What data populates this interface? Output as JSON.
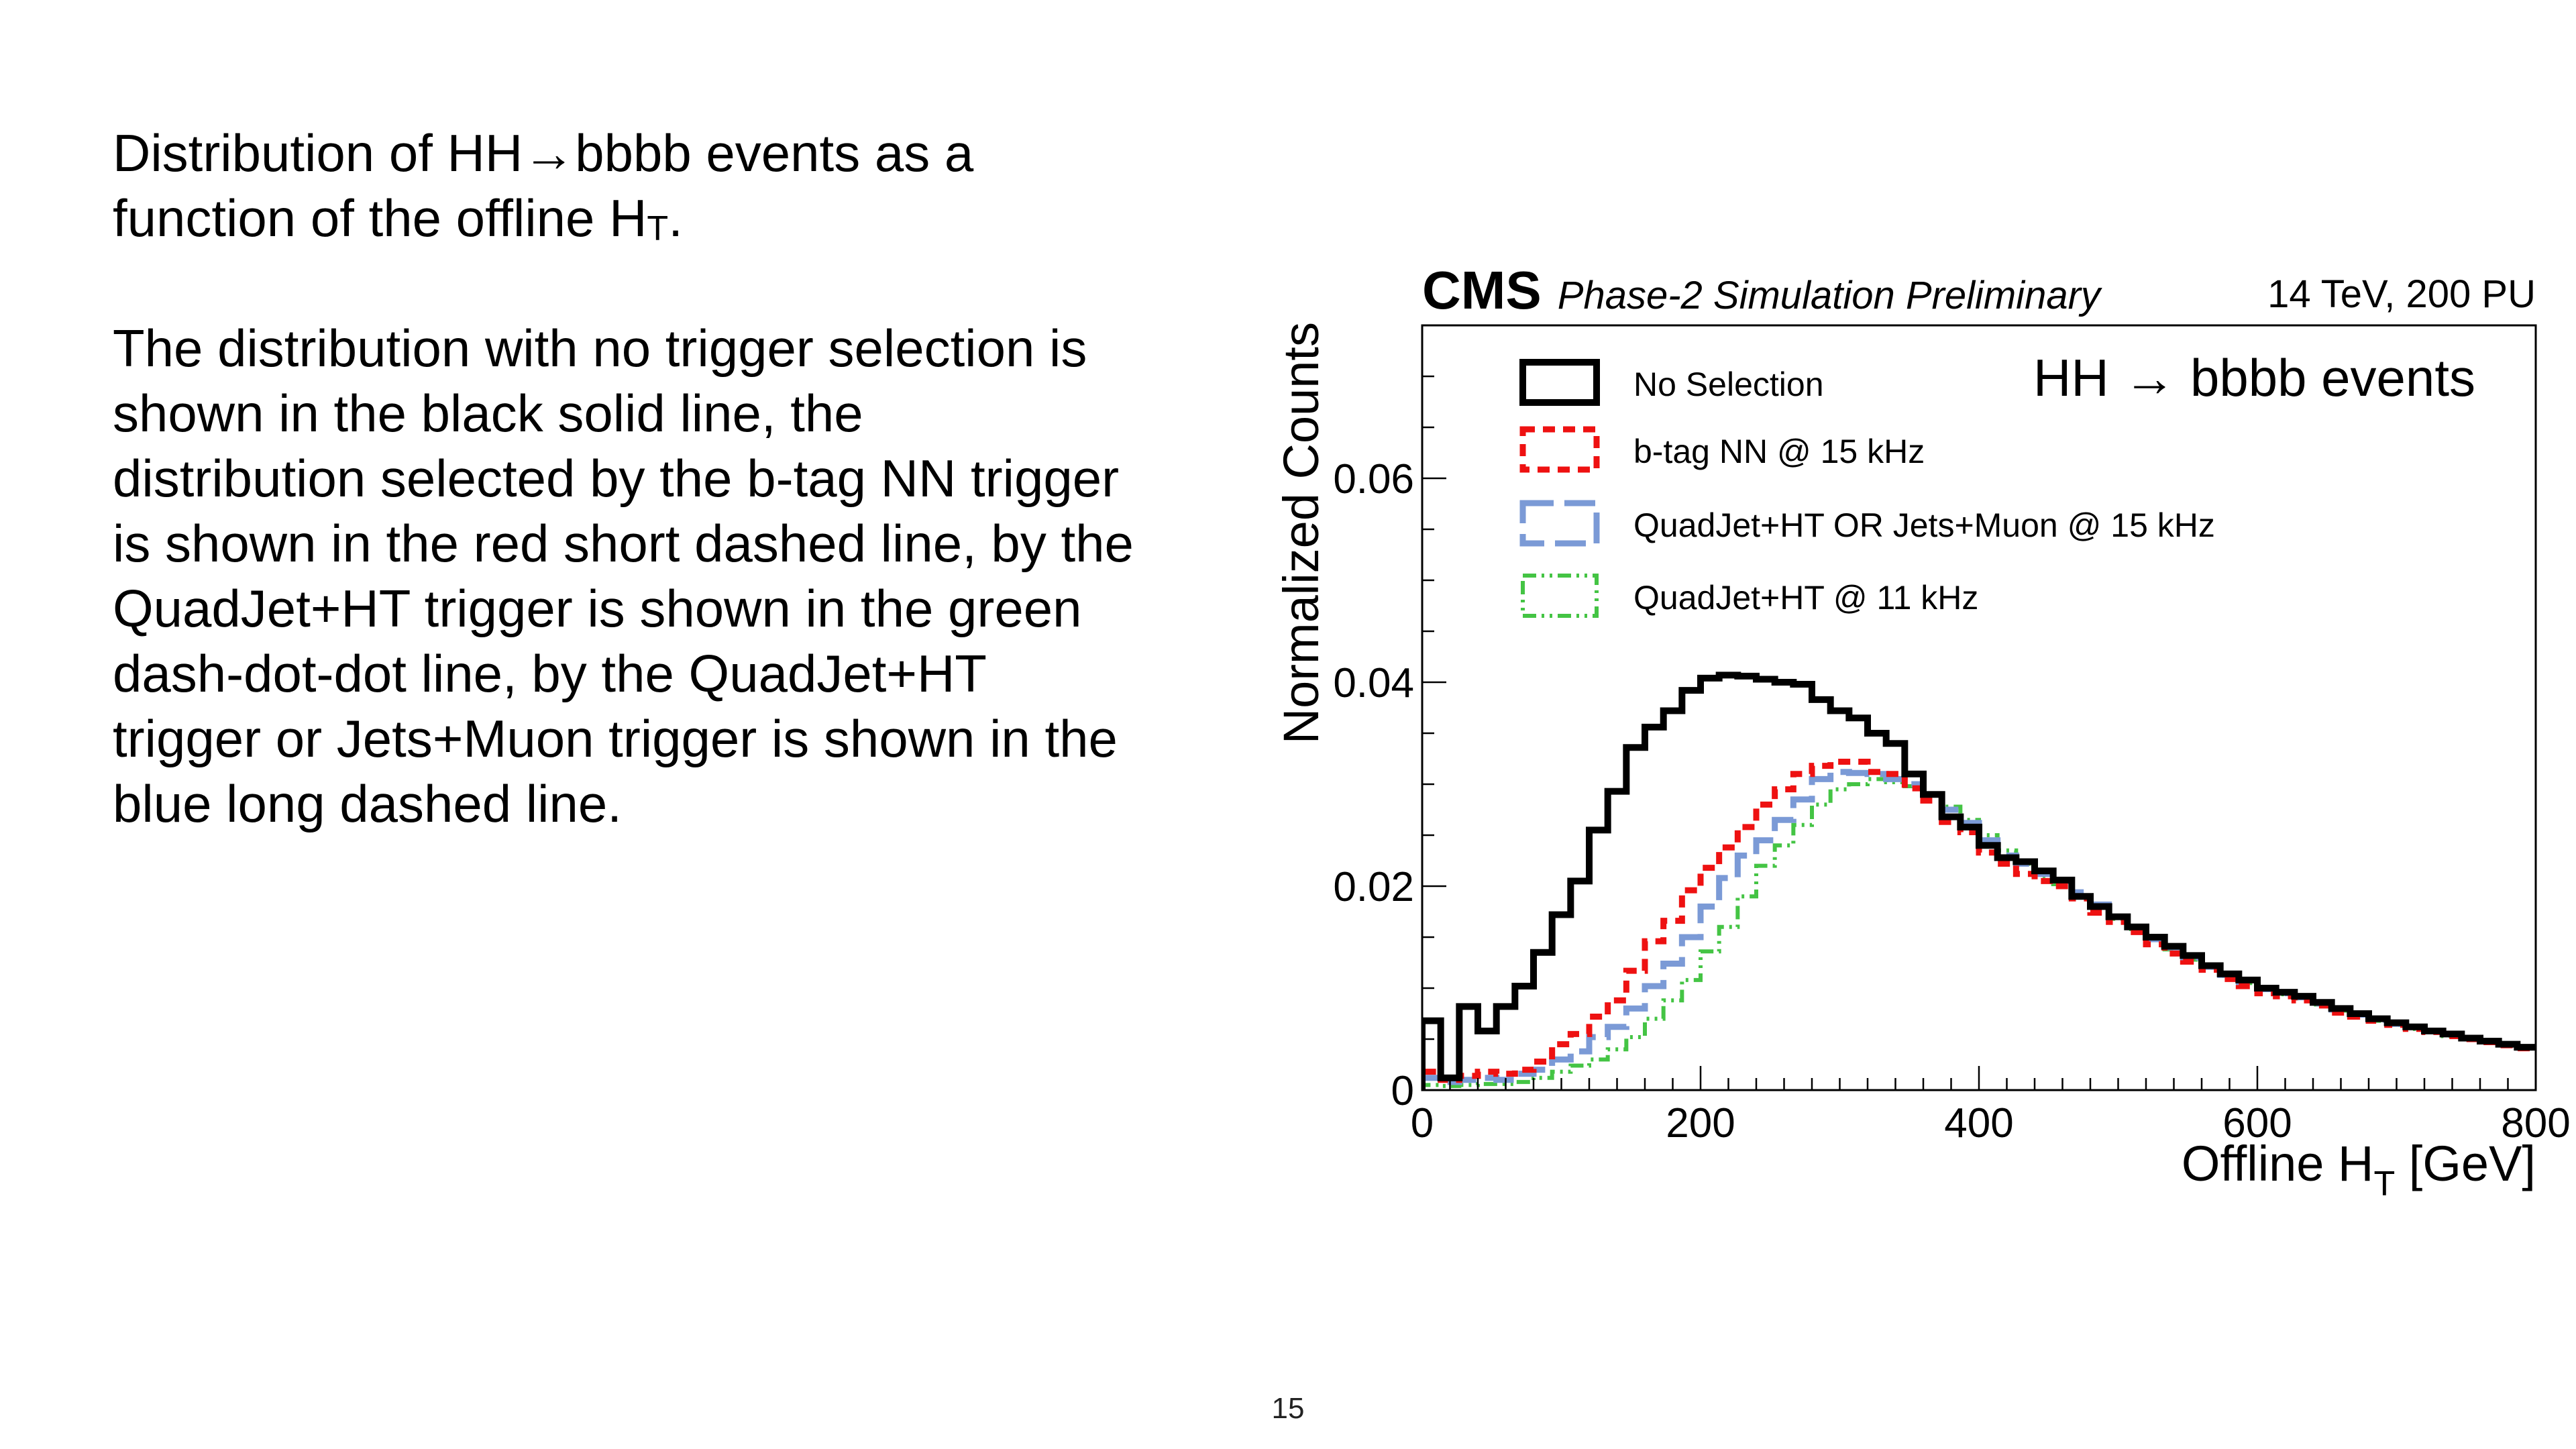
{
  "description": {
    "line1_pre": "Distribution of HH",
    "arrow": "→",
    "line1_post": "bbbb events as a",
    "line2_pre": "function of the offline H",
    "line2_sub": "T",
    "line2_post": ".",
    "paragraph2_lines": [
      "The distribution with no trigger selection is",
      "shown in the black solid line, the",
      "distribution selected by the b-tag NN trigger",
      "is shown in the red short dashed line, by the",
      "QuadJet+HT trigger is shown in the green",
      "dash-dot-dot line, by the QuadJet+HT",
      "trigger or Jets+Muon trigger is shown in the",
      "blue long dashed line."
    ]
  },
  "page_number": "15",
  "chart_data": {
    "type": "line",
    "style": "step-histogram",
    "header": {
      "experiment": "CMS",
      "status": "Phase-2 Simulation Preliminary",
      "conditions": "14 TeV, 200 PU"
    },
    "annotation": "HH → bbbb events",
    "xlabel_main": "Offline H",
    "xlabel_sub": "T",
    "xlabel_unit": " [GeV]",
    "ylabel": "Normalized Counts",
    "xlim": [
      0,
      800
    ],
    "ylim": [
      0,
      0.075
    ],
    "xticks": [
      0,
      200,
      400,
      600,
      800
    ],
    "yticks": [
      0,
      0.02,
      0.04,
      0.06
    ],
    "xtick_labels": [
      "0",
      "200",
      "400",
      "600",
      "800"
    ],
    "ytick_labels": [
      "0",
      "0.02",
      "0.04",
      "0.06"
    ],
    "legend_position": "top-left",
    "grid": false,
    "bin_width": 13.333,
    "series": [
      {
        "name": "No Selection",
        "color": "#000000",
        "dash": "solid",
        "values": [
          0.0068,
          0.0012,
          0.0082,
          0.0058,
          0.0082,
          0.0102,
          0.0135,
          0.0172,
          0.0205,
          0.0255,
          0.0293,
          0.0336,
          0.0356,
          0.0372,
          0.0392,
          0.0404,
          0.0407,
          0.0406,
          0.0403,
          0.04,
          0.0398,
          0.0383,
          0.0372,
          0.0365,
          0.035,
          0.034,
          0.031,
          0.029,
          0.0268,
          0.0258,
          0.024,
          0.0228,
          0.0224,
          0.0215,
          0.0206,
          0.019,
          0.018,
          0.017,
          0.016,
          0.015,
          0.0141,
          0.0132,
          0.0122,
          0.0114,
          0.0108,
          0.01,
          0.0096,
          0.0092,
          0.0086,
          0.008,
          0.0075,
          0.007,
          0.0066,
          0.0062,
          0.0058,
          0.0055,
          0.0051,
          0.0048,
          0.0045,
          0.0042
        ]
      },
      {
        "name": "b-tag NN @ 15 kHz",
        "color": "#ee1111",
        "dash": "short-dash",
        "values": [
          0.0018,
          0.001,
          0.0014,
          0.0018,
          0.0016,
          0.002,
          0.0028,
          0.0045,
          0.0055,
          0.0072,
          0.0088,
          0.0117,
          0.0146,
          0.0166,
          0.0196,
          0.0218,
          0.0238,
          0.0258,
          0.028,
          0.0295,
          0.031,
          0.0318,
          0.0322,
          0.0322,
          0.0312,
          0.031,
          0.0296,
          0.0284,
          0.0263,
          0.0253,
          0.0233,
          0.0222,
          0.0212,
          0.0205,
          0.02,
          0.0188,
          0.0174,
          0.0165,
          0.0155,
          0.0143,
          0.0134,
          0.0126,
          0.0118,
          0.0109,
          0.0102,
          0.0095,
          0.0092,
          0.0088,
          0.0083,
          0.0076,
          0.0072,
          0.0068,
          0.0064,
          0.006,
          0.0057,
          0.0053,
          0.005,
          0.0047,
          0.0044,
          0.0041
        ]
      },
      {
        "name": "QuadJet+HT OR Jets+Muon @ 15 kHz",
        "color": "#7b9ad6",
        "dash": "long-dash",
        "values": [
          0.0012,
          0.0008,
          0.001,
          0.0012,
          0.001,
          0.0016,
          0.002,
          0.003,
          0.0038,
          0.0052,
          0.0062,
          0.008,
          0.0102,
          0.0124,
          0.015,
          0.018,
          0.0208,
          0.023,
          0.0245,
          0.0265,
          0.0285,
          0.0305,
          0.0312,
          0.0311,
          0.031,
          0.0305,
          0.03,
          0.029,
          0.0275,
          0.0262,
          0.0245,
          0.023,
          0.0222,
          0.0212,
          0.0205,
          0.0194,
          0.0182,
          0.017,
          0.016,
          0.0148,
          0.014,
          0.013,
          0.0121,
          0.0113,
          0.0106,
          0.0099,
          0.0095,
          0.0091,
          0.0085,
          0.0079,
          0.0074,
          0.0069,
          0.0065,
          0.0061,
          0.0058,
          0.0054,
          0.0051,
          0.0048,
          0.0045,
          0.0042
        ]
      },
      {
        "name": "QuadJet+HT @ 11 kHz",
        "color": "#44c444",
        "dash": "dash-dot-dot",
        "values": [
          0.0005,
          0.0004,
          0.0005,
          0.0006,
          0.0006,
          0.0008,
          0.0012,
          0.0018,
          0.0024,
          0.003,
          0.004,
          0.0052,
          0.007,
          0.0088,
          0.0108,
          0.0136,
          0.016,
          0.019,
          0.022,
          0.024,
          0.026,
          0.028,
          0.0295,
          0.03,
          0.0305,
          0.0302,
          0.0298,
          0.029,
          0.0278,
          0.0265,
          0.025,
          0.0235,
          0.0222,
          0.021,
          0.0202,
          0.019,
          0.018,
          0.0168,
          0.0158,
          0.0147,
          0.0138,
          0.0128,
          0.012,
          0.0112,
          0.0105,
          0.0098,
          0.0094,
          0.009,
          0.0084,
          0.0078,
          0.0073,
          0.0068,
          0.0064,
          0.006,
          0.0057,
          0.0053,
          0.005,
          0.0047,
          0.0044,
          0.0041
        ]
      }
    ]
  }
}
